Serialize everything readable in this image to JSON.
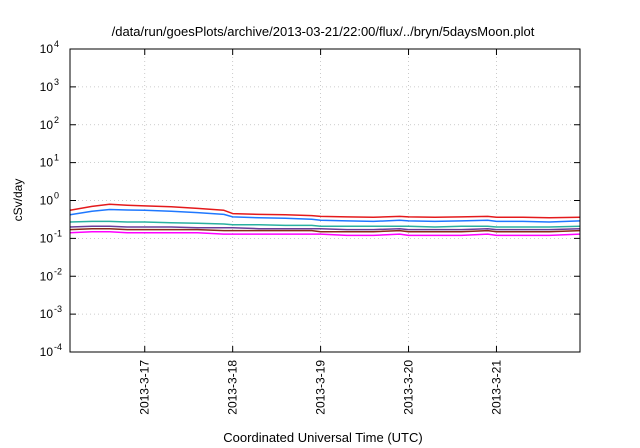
{
  "chart_data": {
    "type": "line",
    "title": "/data/run/goesPlots/archive/2013-03-21/22:00/flux/../bryn/5daysMoon.plot",
    "xlabel": "Coordinated Universal Time (UTC)",
    "ylabel": "cSv/day",
    "yscale": "log",
    "ylim": [
      0.0001,
      10000
    ],
    "xlim_days": [
      16.15,
      21.95
    ],
    "grid": true,
    "y_ticks": [
      {
        "value": 0.0001,
        "base": "10",
        "exp": "-4"
      },
      {
        "value": 0.001,
        "base": "10",
        "exp": "-3"
      },
      {
        "value": 0.01,
        "base": "10",
        "exp": "-2"
      },
      {
        "value": 0.1,
        "base": "10",
        "exp": "-1"
      },
      {
        "value": 1,
        "base": "10",
        "exp": "0"
      },
      {
        "value": 10,
        "base": "10",
        "exp": "1"
      },
      {
        "value": 100,
        "base": "10",
        "exp": "2"
      },
      {
        "value": 1000,
        "base": "10",
        "exp": "3"
      },
      {
        "value": 10000,
        "base": "10",
        "exp": "4"
      }
    ],
    "x_ticks": [
      {
        "label": "2013-3-17",
        "day": 17
      },
      {
        "label": "2013-3-18",
        "day": 18
      },
      {
        "label": "2013-3-19",
        "day": 19
      },
      {
        "label": "2013-3-20",
        "day": 20
      },
      {
        "label": "2013-3-21",
        "day": 21
      }
    ],
    "x_days": [
      16.15,
      16.4,
      16.6,
      16.8,
      17.0,
      17.3,
      17.6,
      17.9,
      18.0,
      18.3,
      18.6,
      18.9,
      19.0,
      19.3,
      19.6,
      19.9,
      20.0,
      20.3,
      20.6,
      20.9,
      21.0,
      21.3,
      21.6,
      21.95
    ],
    "series": [
      {
        "color": "#e41a1c",
        "values": [
          0.55,
          0.7,
          0.8,
          0.75,
          0.72,
          0.68,
          0.62,
          0.55,
          0.45,
          0.43,
          0.42,
          0.4,
          0.38,
          0.37,
          0.36,
          0.38,
          0.37,
          0.36,
          0.37,
          0.38,
          0.36,
          0.36,
          0.35,
          0.36
        ]
      },
      {
        "color": "#1f78ff",
        "values": [
          0.42,
          0.52,
          0.58,
          0.56,
          0.55,
          0.52,
          0.48,
          0.43,
          0.37,
          0.35,
          0.34,
          0.32,
          0.3,
          0.29,
          0.28,
          0.3,
          0.29,
          0.28,
          0.29,
          0.3,
          0.28,
          0.28,
          0.27,
          0.29
        ]
      },
      {
        "color": "#2ab0a0",
        "values": [
          0.27,
          0.28,
          0.28,
          0.27,
          0.27,
          0.26,
          0.25,
          0.24,
          0.23,
          0.23,
          0.22,
          0.22,
          0.21,
          0.21,
          0.21,
          0.21,
          0.21,
          0.2,
          0.21,
          0.21,
          0.2,
          0.2,
          0.2,
          0.21
        ]
      },
      {
        "color": "#6a3d9a",
        "values": [
          0.2,
          0.21,
          0.21,
          0.2,
          0.2,
          0.2,
          0.19,
          0.19,
          0.19,
          0.18,
          0.18,
          0.18,
          0.18,
          0.17,
          0.17,
          0.18,
          0.17,
          0.17,
          0.17,
          0.18,
          0.17,
          0.17,
          0.17,
          0.18
        ]
      },
      {
        "color": "#8b2a1a",
        "values": [
          0.17,
          0.18,
          0.18,
          0.17,
          0.17,
          0.17,
          0.17,
          0.16,
          0.16,
          0.16,
          0.16,
          0.16,
          0.15,
          0.15,
          0.15,
          0.16,
          0.15,
          0.15,
          0.15,
          0.16,
          0.15,
          0.15,
          0.15,
          0.16
        ]
      },
      {
        "color": "#ff00ff",
        "values": [
          0.14,
          0.15,
          0.15,
          0.14,
          0.14,
          0.14,
          0.14,
          0.13,
          0.13,
          0.13,
          0.13,
          0.13,
          0.13,
          0.12,
          0.12,
          0.13,
          0.12,
          0.12,
          0.12,
          0.13,
          0.12,
          0.12,
          0.12,
          0.13
        ]
      }
    ]
  }
}
